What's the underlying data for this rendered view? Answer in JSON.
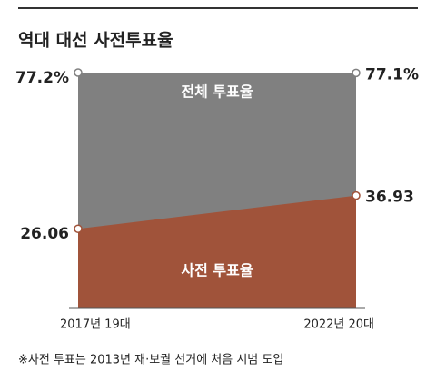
{
  "chart_data": {
    "type": "area",
    "title": "역대 대선 사전투표율",
    "categories": [
      "2017년 19대",
      "2022년 20대"
    ],
    "series": [
      {
        "name": "전체 투표율",
        "color": "#808080",
        "values": [
          77.2,
          77.1
        ],
        "value_labels": [
          "77.2%",
          "77.1%"
        ]
      },
      {
        "name": "사전 투표율",
        "color": "#a0533a",
        "values": [
          26.06,
          36.93
        ]
      }
    ],
    "ylim": [
      0,
      77.2
    ],
    "note": "※사전 투표는 2013년 재·보궐 선거에 처음 시범 도입"
  }
}
